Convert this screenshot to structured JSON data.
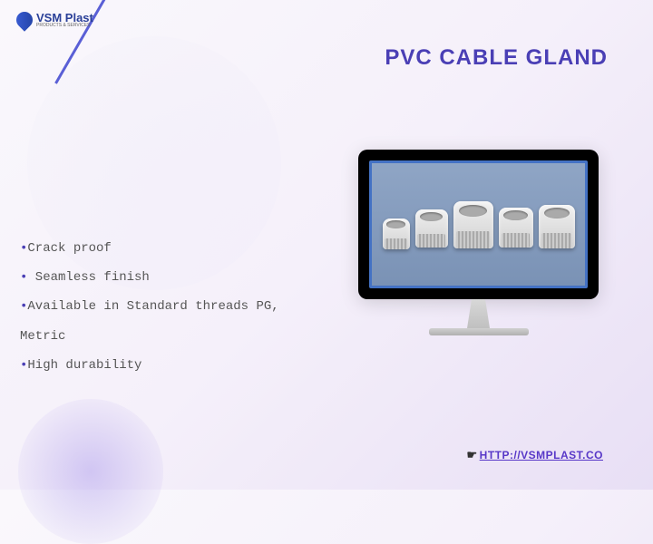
{
  "logo": {
    "name": "VSM Plast",
    "tagline": "PRODUCTS & SERVICES"
  },
  "title": "PVC CABLE GLAND",
  "features": [
    "Crack proof",
    " Seamless finish",
    "Available in Standard threads PG,",
    " Metric",
    "High durability"
  ],
  "link": {
    "icon": "☛",
    "url": "HTTP://VSMPLAST.CO"
  },
  "colors": {
    "title": "#4a3fb5",
    "bullet": "#4a3fb5",
    "link": "#5838c8",
    "logo": "#2a4098",
    "monitor_border": "#4472c4",
    "monitor_bg": "#8fa5c5"
  }
}
